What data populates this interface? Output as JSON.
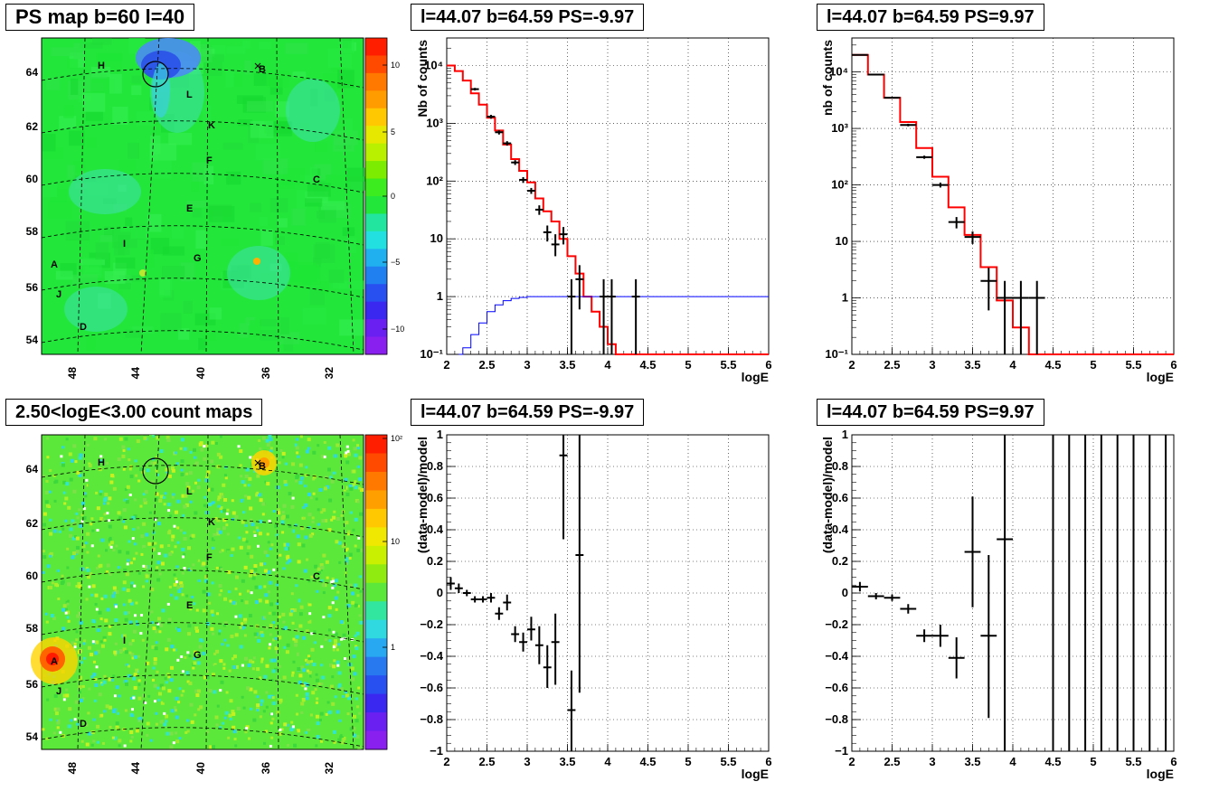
{
  "map_top": {
    "title": "PS map b=60 l=40",
    "xticks": [
      "48",
      "44",
      "40",
      "36",
      "32"
    ],
    "yticks": [
      "64",
      "62",
      "60",
      "58",
      "56",
      "54"
    ],
    "color_ticks": [
      "10",
      "5",
      "0",
      "−5",
      "−10"
    ],
    "colors": {
      "background": "#22e63a",
      "blue_blob": "#2a6cf0",
      "cyan": "#3cd8e8"
    },
    "sources": [
      {
        "label": "H"
      },
      {
        "label": "B"
      },
      {
        "label": "L"
      },
      {
        "label": "K"
      },
      {
        "label": "F"
      },
      {
        "label": "C"
      },
      {
        "label": "E"
      },
      {
        "label": "I"
      },
      {
        "label": "G"
      },
      {
        "label": "A"
      },
      {
        "label": "J"
      },
      {
        "label": "D"
      }
    ]
  },
  "map_bottom": {
    "title": "2.50<logE<3.00 count maps",
    "xticks": [
      "48",
      "44",
      "40",
      "36",
      "32"
    ],
    "yticks": [
      "64",
      "62",
      "60",
      "58",
      "56",
      "54"
    ],
    "color_ticks": [
      "10²",
      "10",
      "1"
    ],
    "colors": {
      "background": "#5ce83a",
      "hot": "#ff2a00",
      "warm": "#ffd400"
    }
  },
  "chart_data": [
    {
      "panel": "spectrum_neg",
      "title": "l=44.07 b=64.59 PS=-9.97",
      "type": "line",
      "xlabel": "logE",
      "ylabel": "Nb of counts",
      "xlim": [
        2,
        6
      ],
      "ylim": [
        0.1,
        30000
      ],
      "yscale": "log",
      "grid": true,
      "xticks": [
        "2",
        "2.5",
        "3",
        "3.5",
        "4",
        "4.5",
        "5",
        "5.5",
        "6"
      ],
      "yticks": [
        {
          "label": "10⁴",
          "v": 10000
        },
        {
          "label": "10³",
          "v": 1000
        },
        {
          "label": "10²",
          "v": 100
        },
        {
          "label": "10",
          "v": 10
        },
        {
          "label": "1",
          "v": 1
        },
        {
          "label": "10⁻¹",
          "v": 0.1
        }
      ],
      "model_color": "#ff0000",
      "model_x": [
        2.0,
        2.1,
        2.2,
        2.3,
        2.4,
        2.5,
        2.6,
        2.7,
        2.8,
        2.9,
        3.0,
        3.1,
        3.2,
        3.3,
        3.4,
        3.5,
        3.6,
        3.7,
        3.8,
        3.9,
        4.0,
        4.1,
        4.2,
        6.0
      ],
      "model_y": [
        10000,
        8000,
        5500,
        3300,
        2100,
        1250,
        750,
        430,
        240,
        150,
        95,
        50,
        30,
        20,
        10,
        5,
        2.5,
        1,
        0.55,
        0.3,
        0.15,
        0.1,
        0.1
      ],
      "band_color": "#0000ff",
      "band_x": [
        2.15,
        2.2,
        2.3,
        2.4,
        2.5,
        2.6,
        2.7,
        2.8,
        2.9,
        3.0,
        3.3,
        6.0
      ],
      "band_y": [
        0.1,
        0.13,
        0.22,
        0.35,
        0.55,
        0.72,
        0.85,
        0.93,
        0.97,
        1,
        1
      ],
      "points": [
        {
          "x": 2.35,
          "y": 3900,
          "lo": 3700,
          "hi": 4100,
          "xe": 0.05
        },
        {
          "x": 2.55,
          "y": 1300,
          "lo": 1200,
          "hi": 1400,
          "xe": 0.05
        },
        {
          "x": 2.65,
          "y": 700,
          "lo": 640,
          "hi": 760,
          "xe": 0.05
        },
        {
          "x": 2.75,
          "y": 450,
          "lo": 410,
          "hi": 490,
          "xe": 0.05
        },
        {
          "x": 2.85,
          "y": 210,
          "lo": 190,
          "hi": 230,
          "xe": 0.05
        },
        {
          "x": 2.95,
          "y": 105,
          "lo": 93,
          "hi": 117,
          "xe": 0.05
        },
        {
          "x": 3.05,
          "y": 68,
          "lo": 60,
          "hi": 76,
          "xe": 0.05
        },
        {
          "x": 3.15,
          "y": 32,
          "lo": 26,
          "hi": 38,
          "xe": 0.05
        },
        {
          "x": 3.25,
          "y": 13,
          "lo": 9,
          "hi": 17,
          "xe": 0.05
        },
        {
          "x": 3.35,
          "y": 8,
          "lo": 5,
          "hi": 12,
          "xe": 0.05
        },
        {
          "x": 3.45,
          "y": 12,
          "lo": 8,
          "hi": 16,
          "xe": 0.05
        },
        {
          "x": 3.55,
          "y": 1,
          "lo": 0.1,
          "hi": 2,
          "xe": 0.05
        },
        {
          "x": 3.65,
          "y": 2,
          "lo": 0.6,
          "hi": 3.5,
          "xe": 0.05
        },
        {
          "x": 3.95,
          "y": 1,
          "lo": 0.1,
          "hi": 2,
          "xe": 0.05
        },
        {
          "x": 4.05,
          "y": 1,
          "lo": 0.1,
          "hi": 2,
          "xe": 0.05
        },
        {
          "x": 4.35,
          "y": 1,
          "lo": 0.1,
          "hi": 2,
          "xe": 0.05
        }
      ]
    },
    {
      "panel": "spectrum_pos",
      "title": "l=44.07 b=64.59 PS=9.97",
      "type": "line",
      "xlabel": "logE",
      "ylabel": "nb of counts",
      "xlim": [
        2,
        6
      ],
      "ylim": [
        0.1,
        40000
      ],
      "yscale": "log",
      "grid": true,
      "xticks": [
        "2",
        "2.5",
        "3",
        "3.5",
        "4",
        "4.5",
        "5",
        "5.5",
        "6"
      ],
      "yticks": [
        {
          "label": "10⁴",
          "v": 10000
        },
        {
          "label": "10³",
          "v": 1000
        },
        {
          "label": "10²",
          "v": 100
        },
        {
          "label": "10",
          "v": 10
        },
        {
          "label": "1",
          "v": 1
        },
        {
          "label": "10⁻¹",
          "v": 0.1
        }
      ],
      "model_color": "#ff0000",
      "model_x": [
        2.0,
        2.2,
        2.4,
        2.6,
        2.8,
        3.0,
        3.2,
        3.4,
        3.6,
        3.8,
        4.0,
        4.2,
        6.0
      ],
      "model_y": [
        20000,
        9000,
        3500,
        1300,
        450,
        140,
        40,
        13,
        3.5,
        0.9,
        0.3,
        0.1
      ],
      "points": [
        {
          "x": 2.1,
          "y": 20000,
          "lo": 19500,
          "hi": 20500,
          "xe": 0.1
        },
        {
          "x": 2.3,
          "y": 9000,
          "lo": 8800,
          "hi": 9200,
          "xe": 0.1
        },
        {
          "x": 2.5,
          "y": 3500,
          "lo": 3400,
          "hi": 3600,
          "xe": 0.1
        },
        {
          "x": 2.7,
          "y": 1150,
          "lo": 1090,
          "hi": 1210,
          "xe": 0.1
        },
        {
          "x": 2.9,
          "y": 310,
          "lo": 290,
          "hi": 330,
          "xe": 0.1
        },
        {
          "x": 3.1,
          "y": 100,
          "lo": 90,
          "hi": 110,
          "xe": 0.1
        },
        {
          "x": 3.3,
          "y": 22,
          "lo": 17,
          "hi": 27,
          "xe": 0.1
        },
        {
          "x": 3.5,
          "y": 12,
          "lo": 9,
          "hi": 15,
          "xe": 0.1
        },
        {
          "x": 3.7,
          "y": 2,
          "lo": 0.6,
          "hi": 3.4,
          "xe": 0.1
        },
        {
          "x": 3.9,
          "y": 1,
          "lo": 0.1,
          "hi": 2,
          "xe": 0.1
        },
        {
          "x": 4.1,
          "y": 1,
          "lo": 0.1,
          "hi": 2,
          "xe": 0.1
        },
        {
          "x": 4.3,
          "y": 1,
          "lo": 0.1,
          "hi": 2,
          "xe": 0.1
        }
      ]
    },
    {
      "panel": "residual_neg",
      "title": "l=44.07 b=64.59 PS=-9.97",
      "type": "scatter",
      "xlabel": "logE",
      "ylabel": "(data-model)/model",
      "xlim": [
        2,
        6
      ],
      "ylim": [
        -1,
        1
      ],
      "yscale": "linear",
      "grid": true,
      "xticks": [
        "2",
        "2.5",
        "3",
        "3.5",
        "4",
        "4.5",
        "5",
        "5.5",
        "6"
      ],
      "yticks": [
        {
          "label": "1",
          "v": 1
        },
        {
          "label": "0.8",
          "v": 0.8
        },
        {
          "label": "0.6",
          "v": 0.6
        },
        {
          "label": "0.4",
          "v": 0.4
        },
        {
          "label": "0.2",
          "v": 0.2
        },
        {
          "label": "0",
          "v": 0
        },
        {
          "label": "−0.2",
          "v": -0.2
        },
        {
          "label": "−0.4",
          "v": -0.4
        },
        {
          "label": "−0.6",
          "v": -0.6
        },
        {
          "label": "−0.8",
          "v": -0.8
        },
        {
          "label": "−1",
          "v": -1
        }
      ],
      "points": [
        {
          "x": 2.05,
          "y": 0.06,
          "lo": 0.02,
          "hi": 0.1,
          "xe": 0.05
        },
        {
          "x": 2.15,
          "y": 0.03,
          "lo": 0.0,
          "hi": 0.06,
          "xe": 0.05
        },
        {
          "x": 2.25,
          "y": 0.0,
          "lo": -0.02,
          "hi": 0.02,
          "xe": 0.05
        },
        {
          "x": 2.35,
          "y": -0.04,
          "lo": -0.06,
          "hi": -0.02,
          "xe": 0.05
        },
        {
          "x": 2.45,
          "y": -0.04,
          "lo": -0.06,
          "hi": -0.02,
          "xe": 0.05
        },
        {
          "x": 2.55,
          "y": -0.03,
          "lo": -0.06,
          "hi": 0.0,
          "xe": 0.05
        },
        {
          "x": 2.65,
          "y": -0.13,
          "lo": -0.17,
          "hi": -0.09,
          "xe": 0.05
        },
        {
          "x": 2.75,
          "y": -0.06,
          "lo": -0.11,
          "hi": -0.01,
          "xe": 0.05
        },
        {
          "x": 2.85,
          "y": -0.26,
          "lo": -0.31,
          "hi": -0.21,
          "xe": 0.05
        },
        {
          "x": 2.95,
          "y": -0.31,
          "lo": -0.37,
          "hi": -0.25,
          "xe": 0.05
        },
        {
          "x": 3.05,
          "y": -0.23,
          "lo": -0.3,
          "hi": -0.15,
          "xe": 0.05
        },
        {
          "x": 3.15,
          "y": -0.33,
          "lo": -0.45,
          "hi": -0.21,
          "xe": 0.05
        },
        {
          "x": 3.25,
          "y": -0.47,
          "lo": -0.6,
          "hi": -0.33,
          "xe": 0.05
        },
        {
          "x": 3.35,
          "y": -0.31,
          "lo": -0.58,
          "hi": -0.13,
          "xe": 0.05
        },
        {
          "x": 3.45,
          "y": 0.87,
          "lo": 0.34,
          "hi": 1.0,
          "xe": 0.05
        },
        {
          "x": 3.55,
          "y": -0.74,
          "lo": -1.0,
          "hi": -0.49,
          "xe": 0.05
        },
        {
          "x": 3.65,
          "y": 0.24,
          "lo": -0.63,
          "hi": 1.0,
          "xe": 0.05
        }
      ]
    },
    {
      "panel": "residual_pos",
      "title": "l=44.07 b=64.59 PS=9.97",
      "type": "scatter",
      "xlabel": "logE",
      "ylabel": "(data-model)/model",
      "xlim": [
        2,
        6
      ],
      "ylim": [
        -1,
        1
      ],
      "yscale": "linear",
      "grid": true,
      "xticks": [
        "2",
        "2.5",
        "3",
        "3.5",
        "4",
        "4.5",
        "5",
        "5.5",
        "6"
      ],
      "yticks": [
        {
          "label": "1",
          "v": 1
        },
        {
          "label": "0.8",
          "v": 0.8
        },
        {
          "label": "0.6",
          "v": 0.6
        },
        {
          "label": "0.4",
          "v": 0.4
        },
        {
          "label": "0.2",
          "v": 0.2
        },
        {
          "label": "0",
          "v": 0
        },
        {
          "label": "−0.2",
          "v": -0.2
        },
        {
          "label": "−0.4",
          "v": -0.4
        },
        {
          "label": "−0.6",
          "v": -0.6
        },
        {
          "label": "−0.8",
          "v": -0.8
        },
        {
          "label": "−1",
          "v": -1
        }
      ],
      "points": [
        {
          "x": 2.1,
          "y": 0.04,
          "lo": 0.01,
          "hi": 0.07,
          "xe": 0.1
        },
        {
          "x": 2.3,
          "y": -0.02,
          "lo": -0.04,
          "hi": 0.0,
          "xe": 0.1
        },
        {
          "x": 2.5,
          "y": -0.03,
          "lo": -0.05,
          "hi": -0.01,
          "xe": 0.1
        },
        {
          "x": 2.7,
          "y": -0.1,
          "lo": -0.13,
          "hi": -0.07,
          "xe": 0.1
        },
        {
          "x": 2.9,
          "y": -0.27,
          "lo": -0.31,
          "hi": -0.23,
          "xe": 0.1
        },
        {
          "x": 3.1,
          "y": -0.27,
          "lo": -0.34,
          "hi": -0.2,
          "xe": 0.1
        },
        {
          "x": 3.3,
          "y": -0.41,
          "lo": -0.54,
          "hi": -0.28,
          "xe": 0.1
        },
        {
          "x": 3.5,
          "y": 0.26,
          "lo": -0.09,
          "hi": 0.61,
          "xe": 0.1
        },
        {
          "x": 3.7,
          "y": -0.27,
          "lo": -0.79,
          "hi": 0.24,
          "xe": 0.1
        },
        {
          "x": 3.9,
          "y": 0.34,
          "lo": -1.0,
          "hi": 1.0,
          "xe": 0.1
        },
        {
          "x": 4.5,
          "y": 1.0,
          "lo": -1.0,
          "hi": 1.0,
          "xe": 0.0
        },
        {
          "x": 4.7,
          "y": 1.0,
          "lo": -1.0,
          "hi": 1.0,
          "xe": 0.0
        },
        {
          "x": 4.9,
          "y": 1.0,
          "lo": -1.0,
          "hi": 1.0,
          "xe": 0.0
        },
        {
          "x": 5.1,
          "y": 1.0,
          "lo": -1.0,
          "hi": 1.0,
          "xe": 0.0
        },
        {
          "x": 5.3,
          "y": 1.0,
          "lo": -1.0,
          "hi": 1.0,
          "xe": 0.0
        },
        {
          "x": 5.5,
          "y": 1.0,
          "lo": -1.0,
          "hi": 1.0,
          "xe": 0.0
        },
        {
          "x": 5.7,
          "y": 1.0,
          "lo": -1.0,
          "hi": 1.0,
          "xe": 0.0
        },
        {
          "x": 5.9,
          "y": 1.0,
          "lo": -1.0,
          "hi": 1.0,
          "xe": 0.0
        }
      ]
    }
  ]
}
